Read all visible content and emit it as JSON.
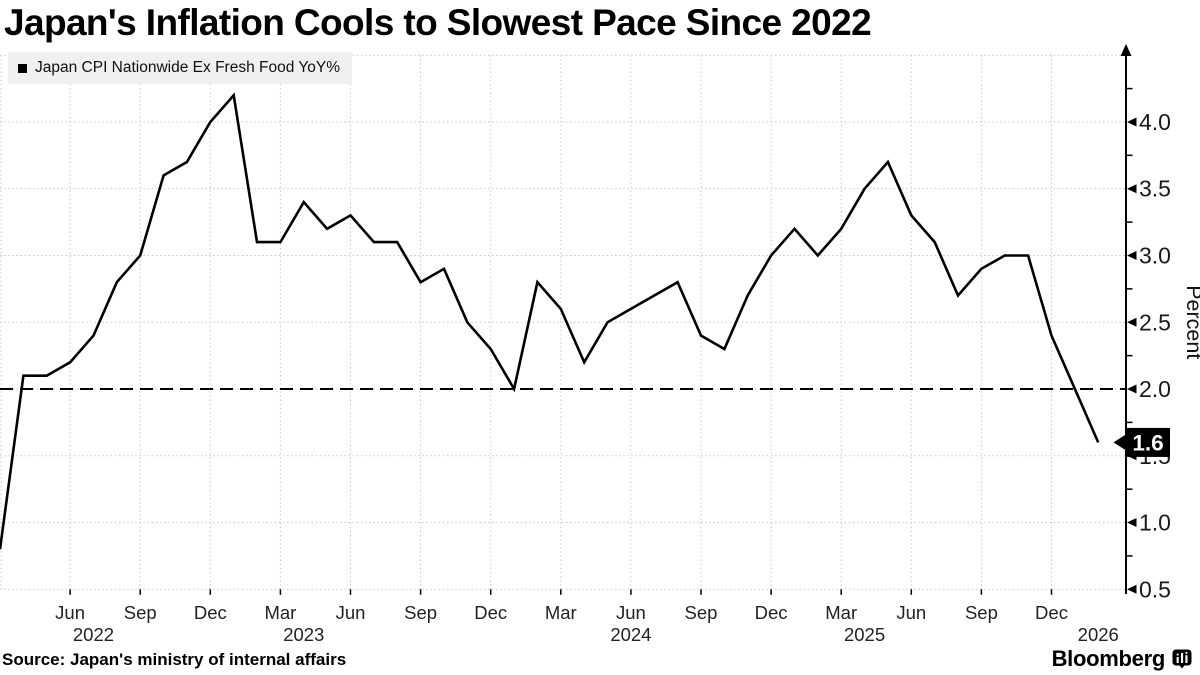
{
  "title": "Japan's Inflation Cools to Slowest Pace Since 2022",
  "legend": {
    "label": "Japan CPI Nationwide Ex Fresh Food YoY%",
    "swatch_color": "#000000"
  },
  "source": "Source: Japan's ministry of internal affairs",
  "brand": {
    "name": "Bloomberg",
    "icon": "bloomberg-mark"
  },
  "colors": {
    "series": "#000000",
    "grid": "#c9c9c9",
    "axis": "#000000",
    "target_line": "#000000",
    "badge_bg": "#000000",
    "badge_text": "#ffffff",
    "tick_text": "#1a1a1a",
    "legend_bg": "#f0f0f0"
  },
  "chart_data": {
    "type": "line",
    "title": "Japan's Inflation Cools to Slowest Pace Since 2022",
    "xlabel": "",
    "ylabel": "Percent",
    "ylim": [
      0.45,
      4.55
    ],
    "grid": true,
    "legend_position": "top-left",
    "axis_side": "right",
    "yticks_labeled": [
      0.5,
      1.0,
      1.5,
      2.0,
      2.5,
      3.0,
      3.5,
      4.0
    ],
    "minor_yticks": [
      0.75,
      1.25,
      1.75,
      2.25,
      2.75,
      3.25,
      3.75,
      4.25
    ],
    "gridlines_y": [
      0.5,
      1.0,
      1.5,
      2.0,
      2.5,
      3.0,
      3.5,
      4.0,
      4.5
    ],
    "target_line_y": 2.0,
    "xtick_month_labels": {
      "03": "Mar",
      "06": "Jun",
      "09": "Sep",
      "12": "Dec"
    },
    "year_labels": [
      {
        "label": "2022",
        "anchor": "2022-07"
      },
      {
        "label": "2023",
        "anchor": "2023-04"
      },
      {
        "label": "2024",
        "anchor": "2024-06"
      },
      {
        "label": "2025",
        "anchor": "2025-04"
      },
      {
        "label": "2026",
        "anchor": "2026-02"
      }
    ],
    "last_value_badge": {
      "text": "1.6",
      "value": 1.6
    },
    "x": [
      "2022-03",
      "2022-04",
      "2022-05",
      "2022-06",
      "2022-07",
      "2022-08",
      "2022-09",
      "2022-10",
      "2022-11",
      "2022-12",
      "2023-01",
      "2023-02",
      "2023-03",
      "2023-04",
      "2023-05",
      "2023-06",
      "2023-07",
      "2023-08",
      "2023-09",
      "2023-10",
      "2023-11",
      "2023-12",
      "2024-01",
      "2024-02",
      "2024-03",
      "2024-04",
      "2024-05",
      "2024-06",
      "2024-07",
      "2024-08",
      "2024-09",
      "2024-10",
      "2024-11",
      "2024-12",
      "2025-01",
      "2025-02",
      "2025-03",
      "2025-04",
      "2025-05",
      "2025-06",
      "2025-07",
      "2025-08",
      "2025-09",
      "2025-10",
      "2025-11",
      "2025-12",
      "2026-01",
      "2026-02"
    ],
    "series": [
      {
        "name": "Japan CPI Nationwide Ex Fresh Food YoY%",
        "color": "#000000",
        "values": [
          0.8,
          2.1,
          2.1,
          2.2,
          2.4,
          2.8,
          3.0,
          3.6,
          3.7,
          4.0,
          4.2,
          3.1,
          3.1,
          3.4,
          3.2,
          3.3,
          3.1,
          3.1,
          2.8,
          2.9,
          2.5,
          2.3,
          2.0,
          2.8,
          2.6,
          2.2,
          2.5,
          2.6,
          2.7,
          2.8,
          2.4,
          2.3,
          2.7,
          3.0,
          3.2,
          3.0,
          3.2,
          3.5,
          3.7,
          3.3,
          3.1,
          2.7,
          2.9,
          3.0,
          3.0,
          2.4,
          2.0,
          1.6
        ]
      }
    ]
  }
}
